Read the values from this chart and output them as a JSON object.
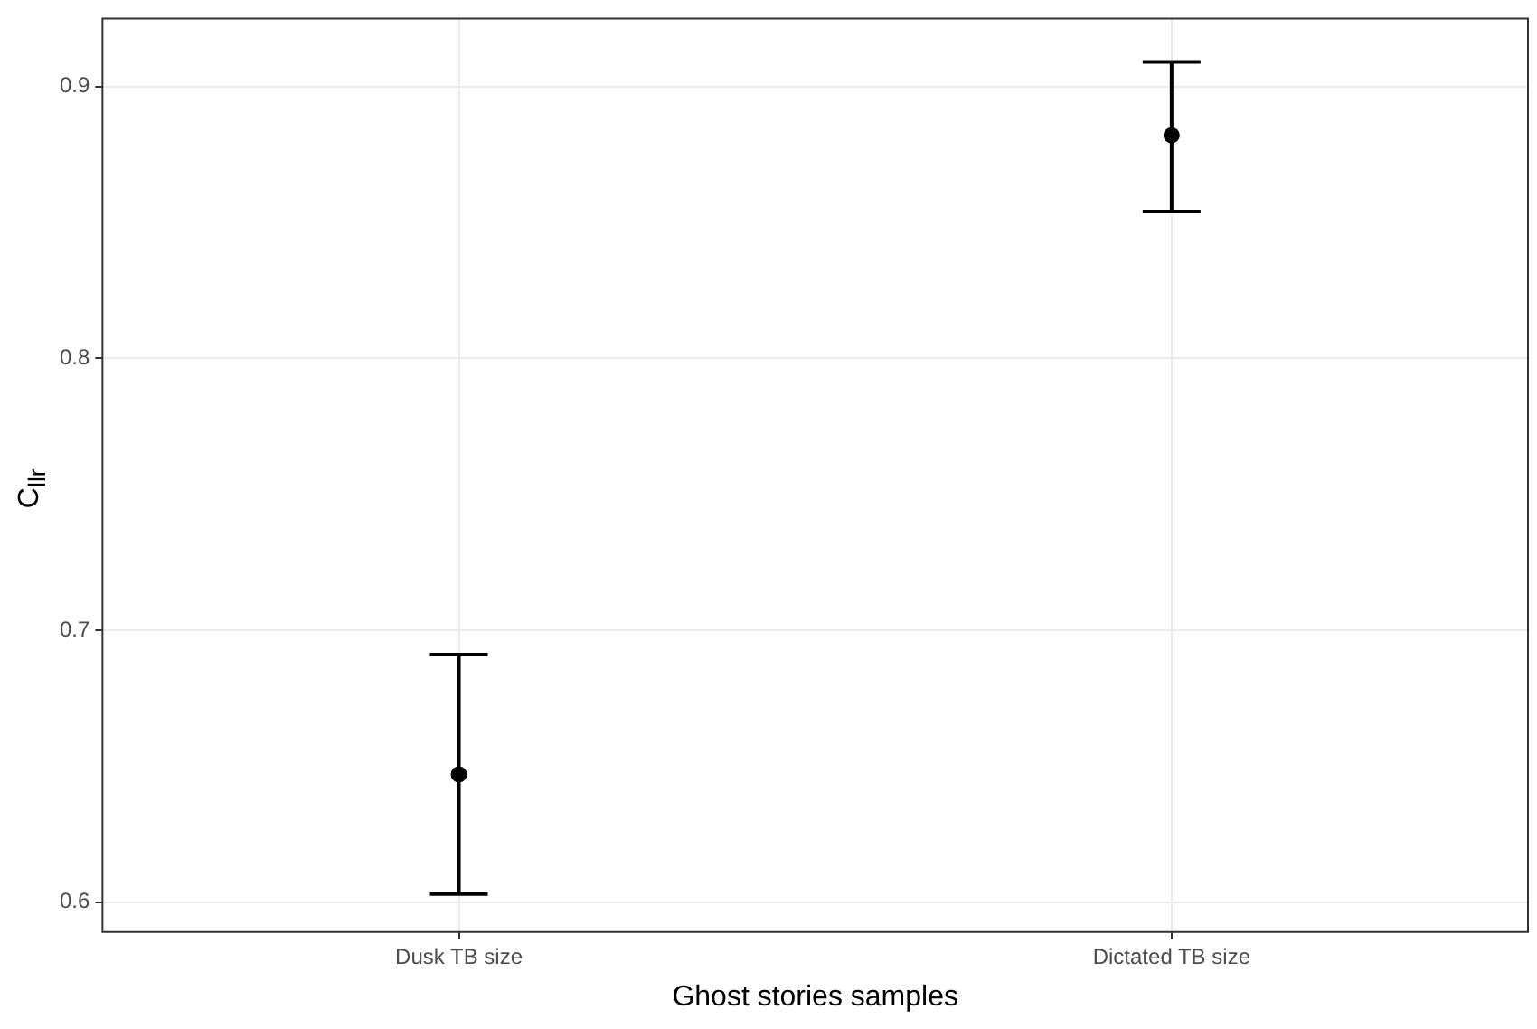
{
  "chart_data": {
    "type": "scatter",
    "xlabel": "Ghost stories samples",
    "ylabel": "C$_{llr}$",
    "categories": [
      "Dusk TB size",
      "Dictated TB size"
    ],
    "series": [
      {
        "color": "#000000",
        "values": [
          0.647,
          0.882
        ],
        "errors": [
          [
            0.603,
            0.691
          ],
          [
            0.854,
            0.909
          ]
        ]
      }
    ],
    "ylim": [
      0.589,
      0.925
    ],
    "yticks": [
      0.6,
      0.7,
      0.8,
      0.9
    ],
    "grid": true,
    "marker": "circle",
    "legend": false
  }
}
